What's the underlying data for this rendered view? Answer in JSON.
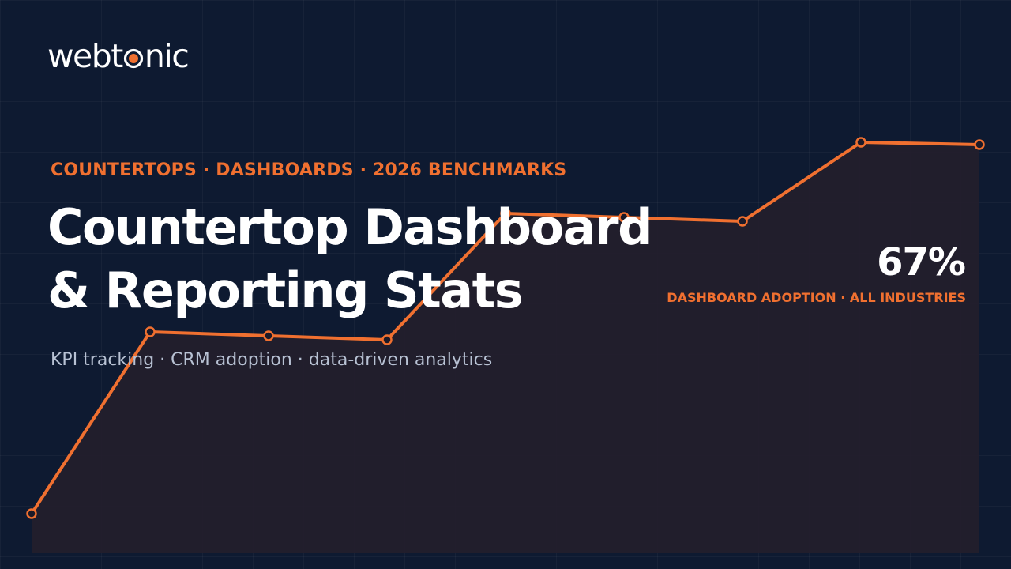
{
  "brand": {
    "logo_part1": "webt",
    "logo_part2": "nic",
    "accent_color": "#f07030",
    "background_color": "#0e1a31"
  },
  "hero": {
    "eyebrow": "COUNTERTOPS · DASHBOARDS · 2026 BENCHMARKS",
    "title_line1": "Countertop Dashboard",
    "title_line2": "& Reporting Stats",
    "subtitle": "KPI tracking · CRM adoption · data-driven analytics"
  },
  "stat": {
    "value": "67%",
    "caption": "DASHBOARD ADOPTION · ALL INDUSTRIES"
  },
  "chart_data": {
    "type": "line",
    "x": [
      1,
      2,
      3,
      4,
      5,
      6,
      7,
      8,
      9
    ],
    "values": [
      20,
      43,
      42.5,
      42,
      58,
      57.5,
      57,
      67,
      66.7
    ],
    "ylim": [
      15,
      75
    ],
    "grid": true,
    "line_color": "#f07030",
    "area_fill": "#231f2c"
  }
}
